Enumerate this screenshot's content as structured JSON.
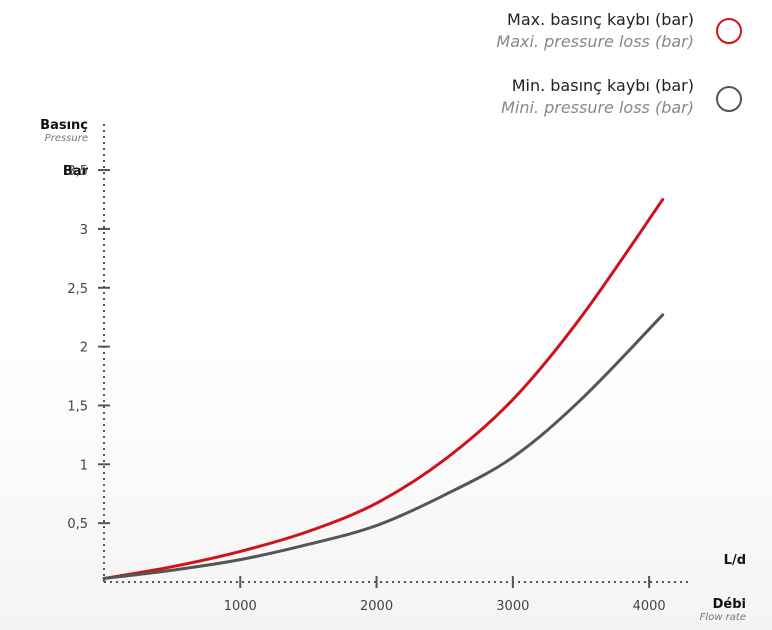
{
  "legend": {
    "max_tr": "Max. basınç kaybı (bar)",
    "max_en": "Maxi. pressure loss (bar)",
    "min_tr": "Min. basınç kaybı (bar)",
    "min_en": "Mini. pressure loss (bar)"
  },
  "y_axis": {
    "title_tr": "Basınç",
    "title_en": "Pressure",
    "unit": "Bar"
  },
  "x_axis": {
    "unit": "L/d",
    "title_tr": "Débi",
    "title_en": "Flow rate"
  },
  "chart_data": {
    "type": "line",
    "xlim": [
      0,
      4300
    ],
    "ylim": [
      0,
      3.9
    ],
    "x_ticks": [
      1000,
      2000,
      3000,
      4000
    ],
    "x_tick_labels": [
      "1000",
      "2000",
      "3000",
      "4000"
    ],
    "y_ticks": [
      0.5,
      1,
      1.5,
      2,
      2.5,
      3,
      3.5
    ],
    "y_tick_labels": [
      "0,5",
      "1",
      "1,5",
      "2",
      "2,5",
      "3",
      "3,5"
    ],
    "grid": false,
    "legend_position": "top-right",
    "series": [
      {
        "name": "Max. basınç kaybı (bar)",
        "color": "#d0121b",
        "x": [
          0,
          500,
          1000,
          1500,
          2000,
          2500,
          3000,
          3500,
          4100
        ],
        "y": [
          0.03,
          0.13,
          0.26,
          0.43,
          0.67,
          1.04,
          1.55,
          2.25,
          3.25
        ]
      },
      {
        "name": "Min. basınç kaybı (bar)",
        "color": "#555555",
        "x": [
          0,
          500,
          1000,
          1500,
          2000,
          2500,
          3000,
          3500,
          4100
        ],
        "y": [
          0.03,
          0.1,
          0.19,
          0.32,
          0.48,
          0.74,
          1.06,
          1.55,
          2.27
        ]
      }
    ]
  }
}
